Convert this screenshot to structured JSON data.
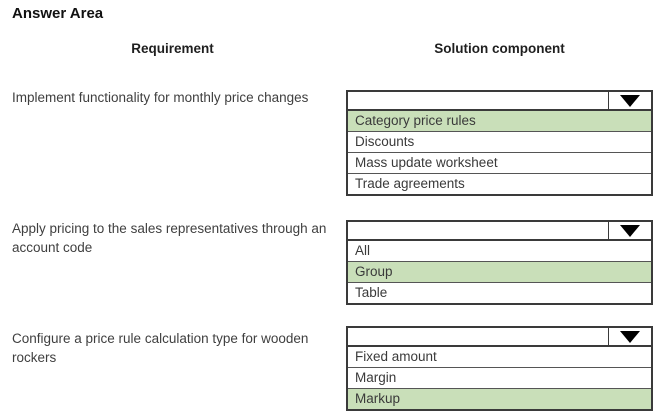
{
  "title": "Answer Area",
  "headers": {
    "requirement": "Requirement",
    "solution": "Solution component"
  },
  "rows": [
    {
      "requirement": "Implement functionality for monthly price changes",
      "selected_value": "",
      "options": [
        "Category price rules",
        "Discounts",
        "Mass update worksheet",
        "Trade agreements"
      ],
      "highlighted_option": "Category price rules",
      "highlighted_index": 0
    },
    {
      "requirement": "Apply pricing to the sales representatives through an account code",
      "selected_value": "",
      "options": [
        "All",
        "Group",
        "Table"
      ],
      "highlighted_option": "Group",
      "highlighted_index": 1
    },
    {
      "requirement": "Configure a price rule calculation type for wooden rockers",
      "selected_value": "",
      "options": [
        "Fixed amount",
        "Margin",
        "Markup"
      ],
      "highlighted_option": "Markup",
      "highlighted_index": 2
    }
  ],
  "colors": {
    "highlight_green": "#c9dfb9",
    "border": "#3a3a3a",
    "arrow": "#000000"
  }
}
